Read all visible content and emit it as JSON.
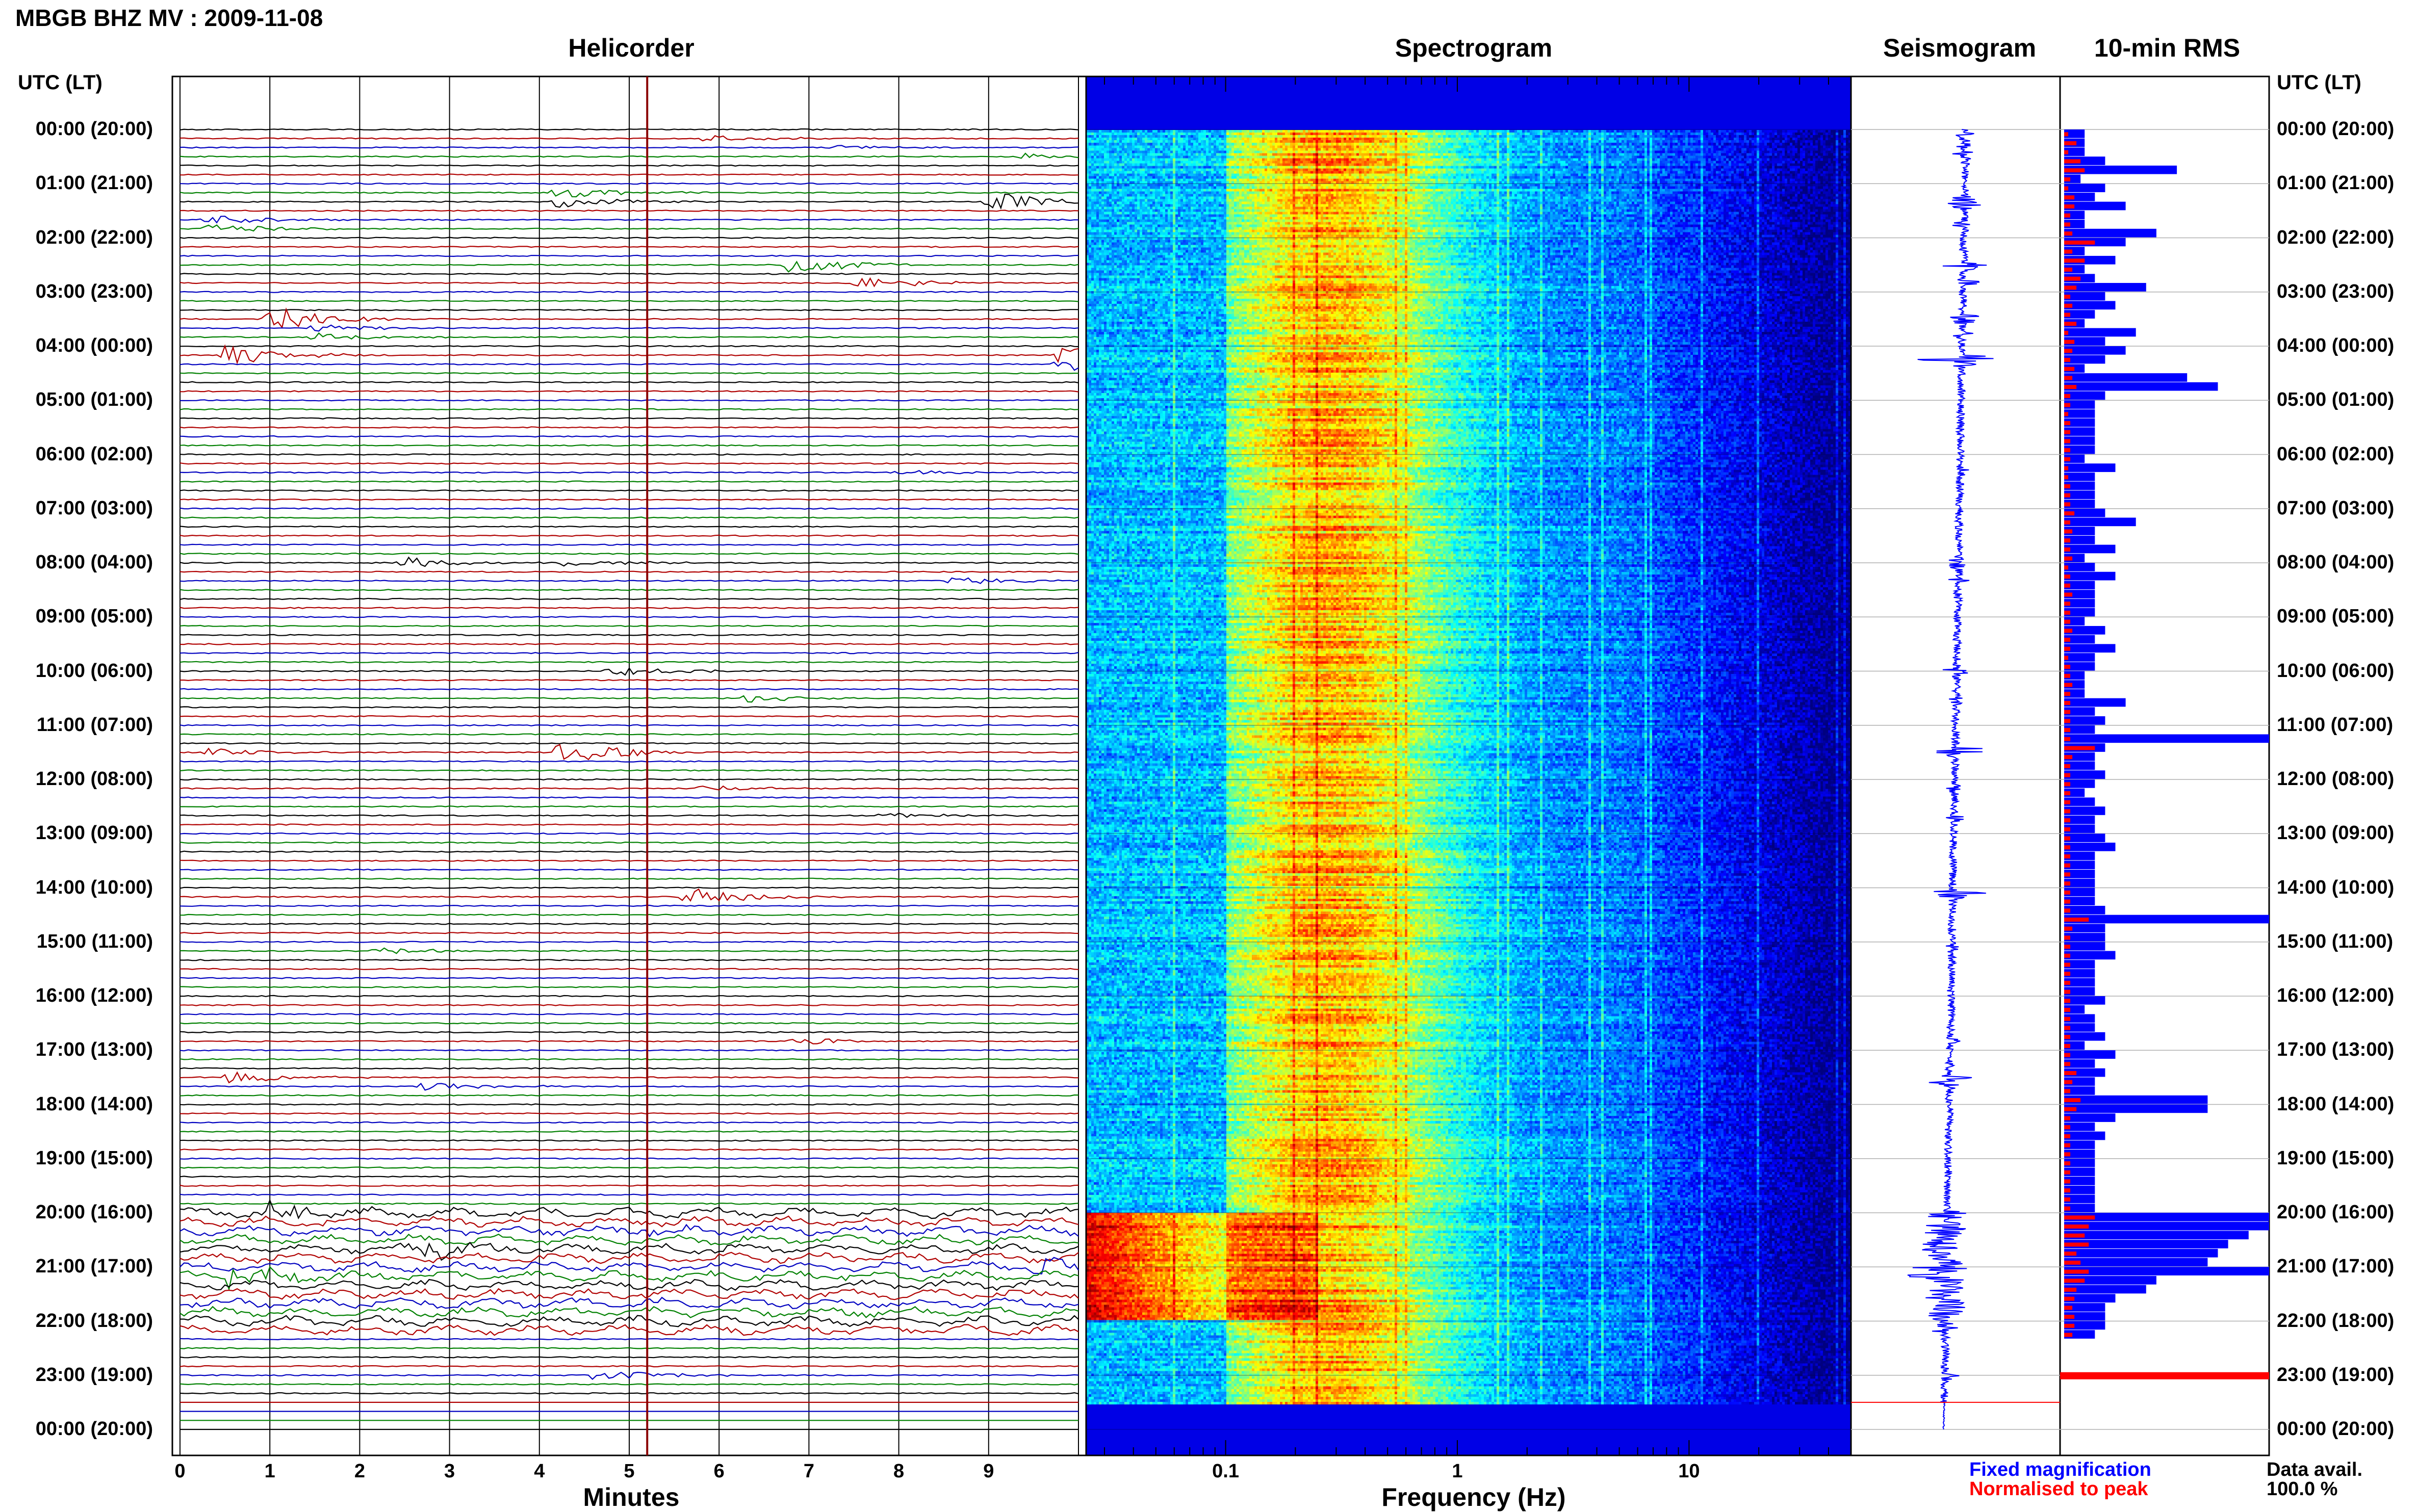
{
  "station_title": "MBGB BHZ MV : 2009-11-08",
  "time_axis_header": "UTC (LT)",
  "time_labels": [
    "00:00 (20:00)",
    "01:00 (21:00)",
    "02:00 (22:00)",
    "03:00 (23:00)",
    "04:00 (00:00)",
    "05:00 (01:00)",
    "06:00 (02:00)",
    "07:00 (03:00)",
    "08:00 (04:00)",
    "09:00 (05:00)",
    "10:00 (06:00)",
    "11:00 (07:00)",
    "12:00 (08:00)",
    "13:00 (09:00)",
    "14:00 (10:00)",
    "15:00 (11:00)",
    "16:00 (12:00)",
    "17:00 (13:00)",
    "18:00 (14:00)",
    "19:00 (15:00)",
    "20:00 (16:00)",
    "21:00 (17:00)",
    "22:00 (18:00)",
    "23:00 (19:00)",
    "00:00 (20:00)"
  ],
  "panels": {
    "helicorder": "Helicorder",
    "spectrogram": "Spectrogram",
    "seismogram": "Seismogram",
    "rms": "10-min RMS"
  },
  "legend": {
    "fixed": "Fixed magnification",
    "normalised": "Normalised to peak",
    "data_avail_label": "Data avail.",
    "data_avail_value": "100.0 %"
  },
  "colors": {
    "trace_cycle": [
      "#000000",
      "#b00000",
      "#0000c0",
      "#008000"
    ],
    "rms_fixed": "#0000ff",
    "rms_normalised": "#ff0000",
    "marker_line": "#8b0000"
  },
  "chart_data": [
    {
      "type": "line",
      "title": "Helicorder",
      "xlabel": "Minutes",
      "x_ticks": [
        "0",
        "1",
        "2",
        "3",
        "4",
        "5",
        "6",
        "7",
        "8",
        "9"
      ],
      "xlim": [
        0,
        10
      ],
      "lines_per_hour": 6,
      "current_time_marker_minutes": 5.2,
      "data_end_hour": 23.5,
      "events": [
        {
          "hour": 0.1,
          "minute": 5.8,
          "amp": 0.9
        },
        {
          "hour": 0.3,
          "minute": 7.3,
          "amp": 0.5
        },
        {
          "hour": 0.45,
          "minute": 9.3,
          "amp": 0.7
        },
        {
          "hour": 1.25,
          "minute": 4.2,
          "amp": 1.3
        },
        {
          "hour": 1.35,
          "minute": 9.0,
          "amp": 2.2
        },
        {
          "hour": 1.75,
          "minute": 0.3,
          "amp": 1.0
        },
        {
          "hour": 2.5,
          "minute": 6.8,
          "amp": 2.0
        },
        {
          "hour": 2.8,
          "minute": 7.5,
          "amp": 1.4
        },
        {
          "hour": 3.45,
          "minute": 1.0,
          "amp": 2.6
        },
        {
          "hour": 3.75,
          "minute": 1.5,
          "amp": 0.8
        },
        {
          "hour": 4.2,
          "minute": 0.5,
          "amp": 2.3
        },
        {
          "hour": 4.25,
          "minute": 9.8,
          "amp": 2.4
        },
        {
          "hour": 6.3,
          "minute": 8.0,
          "amp": 0.7
        },
        {
          "hour": 7.95,
          "minute": 4.3,
          "amp": 0.9
        },
        {
          "hour": 8.05,
          "minute": 2.5,
          "amp": 1.1
        },
        {
          "hour": 8.3,
          "minute": 8.6,
          "amp": 0.9
        },
        {
          "hour": 10.0,
          "minute": 4.8,
          "amp": 1.0
        },
        {
          "hour": 10.5,
          "minute": 6.3,
          "amp": 0.8
        },
        {
          "hour": 11.5,
          "minute": 0.3,
          "amp": 0.9
        },
        {
          "hour": 11.45,
          "minute": 4.2,
          "amp": 2.6
        },
        {
          "hour": 12.15,
          "minute": 5.8,
          "amp": 0.7
        },
        {
          "hour": 12.7,
          "minute": 7.8,
          "amp": 0.7
        },
        {
          "hour": 14.1,
          "minute": 5.6,
          "amp": 2.2
        },
        {
          "hour": 15.1,
          "minute": 2.2,
          "amp": 0.7
        },
        {
          "hour": 16.8,
          "minute": 6.8,
          "amp": 0.8
        },
        {
          "hour": 17.5,
          "minute": 0.5,
          "amp": 1.3
        },
        {
          "hour": 17.6,
          "minute": 2.7,
          "amp": 1.0
        },
        {
          "hour": 20.0,
          "minute": 1.0,
          "amp": 2.0
        },
        {
          "hour": 20.6,
          "minute": 2.6,
          "amp": 2.2
        },
        {
          "hour": 20.4,
          "minute": 5.2,
          "amp": 1.3
        },
        {
          "hour": 21.15,
          "minute": 0.5,
          "amp": 2.2
        },
        {
          "hour": 21.0,
          "minute": 9.5,
          "amp": 1.8
        },
        {
          "hour": 23.0,
          "minute": 4.6,
          "amp": 1.3
        }
      ]
    },
    {
      "type": "heatmap",
      "title": "Spectrogram",
      "xlabel": "Frequency (Hz)",
      "x_scale": "log",
      "xlim": [
        0.025,
        50
      ],
      "x_tick_labels": [
        "0.1",
        "1",
        "10"
      ],
      "colormap": "jet",
      "peak_band_hz": [
        0.2,
        0.4
      ],
      "lowfreq_burst_hours": [
        20.0,
        22.0
      ],
      "data_end_hour": 23.5
    },
    {
      "type": "line",
      "title": "Seismogram",
      "orientation": "vertical",
      "time_range_hours": [
        0,
        24
      ],
      "data_end_hour": 23.5
    },
    {
      "type": "bar",
      "title": "10-min RMS",
      "orientation": "horizontal",
      "series": [
        {
          "name": "Fixed magnification",
          "values": [
            0.1,
            0.1,
            0.1,
            0.2,
            0.55,
            0.08,
            0.2,
            0.15,
            0.3,
            0.1,
            0.1,
            0.45,
            0.3,
            0.1,
            0.25,
            0.1,
            0.15,
            0.4,
            0.2,
            0.25,
            0.15,
            0.1,
            0.35,
            0.2,
            0.3,
            0.2,
            0.1,
            0.6,
            0.75,
            0.2,
            0.15,
            0.15,
            0.15,
            0.15,
            0.15,
            0.15,
            0.1,
            0.25,
            0.15,
            0.15,
            0.15,
            0.15,
            0.2,
            0.35,
            0.15,
            0.15,
            0.25,
            0.1,
            0.15,
            0.25,
            0.15,
            0.15,
            0.15,
            0.15,
            0.1,
            0.2,
            0.15,
            0.25,
            0.15,
            0.15,
            0.1,
            0.1,
            0.1,
            0.3,
            0.15,
            0.2,
            0.15,
            1.0,
            0.2,
            0.15,
            0.15,
            0.2,
            0.15,
            0.1,
            0.15,
            0.2,
            0.15,
            0.15,
            0.2,
            0.25,
            0.15,
            0.15,
            0.15,
            0.15,
            0.15,
            0.15,
            0.2,
            1.0,
            0.2,
            0.2,
            0.2,
            0.25,
            0.15,
            0.15,
            0.15,
            0.15,
            0.2,
            0.1,
            0.15,
            0.15,
            0.2,
            0.1,
            0.25,
            0.15,
            0.2,
            0.15,
            0.15,
            0.7,
            0.7,
            0.25,
            0.15,
            0.2,
            0.15,
            0.15,
            0.15,
            0.15,
            0.15,
            0.15,
            0.15,
            0.15,
            1.0,
            1.0,
            0.9,
            0.8,
            0.75,
            0.7,
            1.0,
            0.45,
            0.4,
            0.25,
            0.2,
            0.2,
            0.2,
            0.15,
            0.0,
            0.0,
            0.0,
            0.0
          ]
        },
        {
          "name": "Normalised to peak",
          "values": [
            0.02,
            0.06,
            0.02,
            0.08,
            0.1,
            0.03,
            0.02,
            0.05,
            0.05,
            0.03,
            0.03,
            0.04,
            0.15,
            0.04,
            0.1,
            0.04,
            0.08,
            0.06,
            0.03,
            0.04,
            0.03,
            0.06,
            0.02,
            0.05,
            0.04,
            0.03,
            0.05,
            0.04,
            0.06,
            0.03,
            0.03,
            0.02,
            0.03,
            0.03,
            0.03,
            0.03,
            0.03,
            0.02,
            0.02,
            0.03,
            0.03,
            0.03,
            0.05,
            0.03,
            0.04,
            0.03,
            0.03,
            0.04,
            0.02,
            0.03,
            0.03,
            0.04,
            0.03,
            0.03,
            0.03,
            0.04,
            0.03,
            0.03,
            0.02,
            0.03,
            0.03,
            0.04,
            0.03,
            0.03,
            0.03,
            0.03,
            0.03,
            0.03,
            0.15,
            0.04,
            0.03,
            0.03,
            0.03,
            0.03,
            0.03,
            0.03,
            0.03,
            0.03,
            0.03,
            0.03,
            0.03,
            0.03,
            0.03,
            0.03,
            0.03,
            0.03,
            0.03,
            0.12,
            0.04,
            0.03,
            0.03,
            0.03,
            0.03,
            0.03,
            0.03,
            0.03,
            0.03,
            0.03,
            0.03,
            0.03,
            0.03,
            0.03,
            0.03,
            0.03,
            0.06,
            0.04,
            0.03,
            0.08,
            0.06,
            0.03,
            0.03,
            0.03,
            0.03,
            0.03,
            0.03,
            0.03,
            0.03,
            0.03,
            0.03,
            0.03,
            0.15,
            0.12,
            0.1,
            0.12,
            0.06,
            0.08,
            0.12,
            0.1,
            0.06,
            0.05,
            0.04,
            0.05,
            0.05,
            0.04,
            0.0,
            0.0,
            0.0,
            0.0
          ]
        }
      ],
      "last_bar_full_width_hour": 23.0
    }
  ]
}
